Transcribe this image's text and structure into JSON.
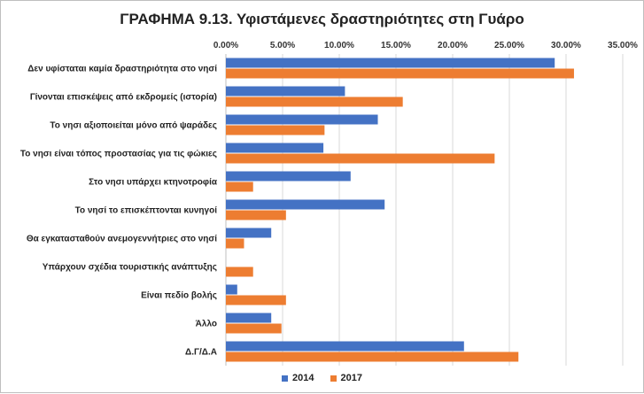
{
  "chart_data": {
    "type": "bar",
    "orientation": "horizontal",
    "title": "ΓΡΑΦΗΜΑ 9.13. Υφιστάμενες δραστηριότητες στη Γυάρο",
    "xlabel": "",
    "ylabel": "",
    "xlim": [
      0,
      35
    ],
    "xticks": [
      "0.00%",
      "5.00%",
      "10.00%",
      "15.00%",
      "20.00%",
      "25.00%",
      "30.00%",
      "35.00%"
    ],
    "grid": true,
    "legend_position": "bottom",
    "categories": [
      "Δεν υφίσταται καμία δραστηριότητα στο νησί",
      "Γίνονται επισκέψεις από εκδρομείς (ιστορία)",
      "Το νησι αξιοποιείται μόνο από ψαράδες",
      "Το νησι είναι τόπος προστασίας για τις φώκιες",
      "Στο νησι υπάρχει κτηνοτροφία",
      "Το νησί το επισκέπτονται κυνηγοί",
      "Θα εγκατασταθούν ανεμογεννήτριες στο νησί",
      "Υπάρχουν σχέδια τουριστικής ανάπτυξης",
      "Είναι πεδίο βολής",
      "Άλλο",
      "Δ.Γ/Δ.Α"
    ],
    "series": [
      {
        "name": "2014",
        "color": "#4472C4",
        "values": [
          29.0,
          10.5,
          13.4,
          8.6,
          11.0,
          14.0,
          4.0,
          0.0,
          1.0,
          4.0,
          21.0
        ]
      },
      {
        "name": "2017",
        "color": "#ED7D31",
        "values": [
          30.7,
          15.6,
          8.7,
          23.7,
          2.4,
          5.3,
          1.6,
          2.4,
          5.3,
          4.9,
          25.8
        ]
      }
    ]
  }
}
